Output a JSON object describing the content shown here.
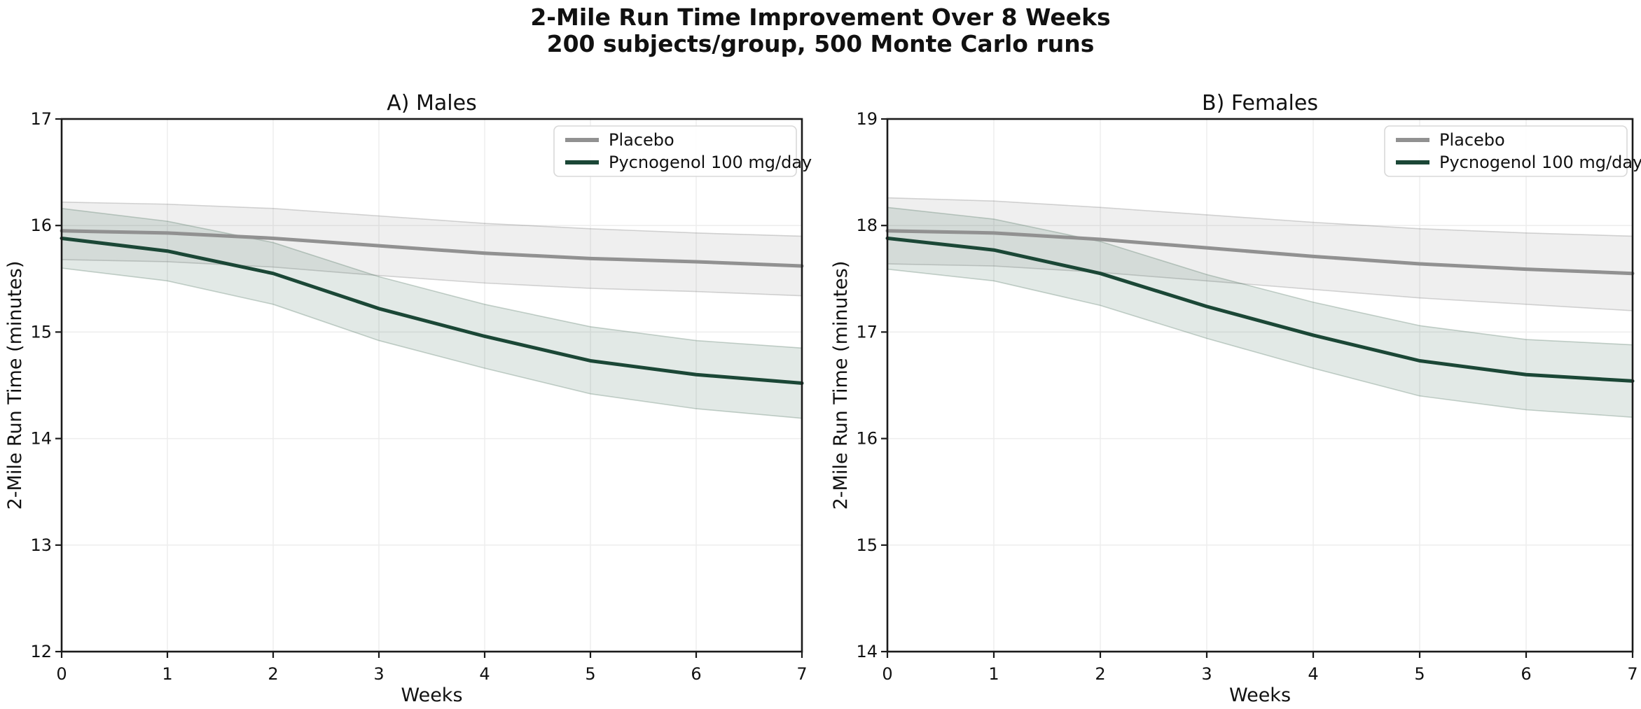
{
  "page": {
    "title": "2-Mile Run Time Improvement Over 8 Weeks",
    "subtitle": "200 subjects/group, 500 Monte Carlo runs"
  },
  "colors": {
    "placebo_line": "#919191",
    "treatment_line": "#1b4736",
    "placebo_band_fill": "rgba(150,150,150,0.15)",
    "treatment_band_fill": "rgba(34,85,60,0.13)",
    "placebo_band_edge": "rgba(120,120,120,0.30)",
    "treatment_band_edge": "rgba(60,100,80,0.28)",
    "grid": "#ededed",
    "spine": "#1a1a1a",
    "text": "#111111",
    "legend_border": "#d8d8d8",
    "legend_fill": "rgba(255,255,255,0.85)"
  },
  "chart_data": [
    {
      "type": "line",
      "panel_id": "males",
      "title": "A) Males",
      "xlabel": "Weeks",
      "ylabel": "2-Mile Run Time (minutes)",
      "x": [
        0,
        1,
        2,
        3,
        4,
        5,
        6,
        7
      ],
      "xlim": [
        0,
        7
      ],
      "ylim": [
        12,
        17
      ],
      "x_ticks": [
        "0",
        "1",
        "2",
        "3",
        "4",
        "5",
        "6",
        "7"
      ],
      "y_ticks": [
        "12",
        "13",
        "14",
        "15",
        "16",
        "17"
      ],
      "grid": true,
      "legend_position": "upper right",
      "series": [
        {
          "name": "Placebo",
          "color_key": "placebo",
          "values": [
            15.95,
            15.93,
            15.88,
            15.81,
            15.74,
            15.69,
            15.66,
            15.62
          ],
          "band_upper": [
            16.22,
            16.2,
            16.16,
            16.09,
            16.02,
            15.97,
            15.93,
            15.9
          ],
          "band_lower": [
            15.68,
            15.66,
            15.61,
            15.53,
            15.46,
            15.41,
            15.38,
            15.34
          ]
        },
        {
          "name": "Pycnogenol 100 mg/day",
          "color_key": "treatment",
          "values": [
            15.88,
            15.76,
            15.55,
            15.22,
            14.96,
            14.73,
            14.6,
            14.52
          ],
          "band_upper": [
            16.16,
            16.04,
            15.84,
            15.52,
            15.26,
            15.05,
            14.92,
            14.85
          ],
          "band_lower": [
            15.6,
            15.48,
            15.26,
            14.92,
            14.66,
            14.42,
            14.28,
            14.19
          ]
        }
      ]
    },
    {
      "type": "line",
      "panel_id": "females",
      "title": "B) Females",
      "xlabel": "Weeks",
      "ylabel": "2-Mile Run Time (minutes)",
      "x": [
        0,
        1,
        2,
        3,
        4,
        5,
        6,
        7
      ],
      "xlim": [
        0,
        7
      ],
      "ylim": [
        14,
        19
      ],
      "x_ticks": [
        "0",
        "1",
        "2",
        "3",
        "4",
        "5",
        "6",
        "7"
      ],
      "y_ticks": [
        "14",
        "15",
        "16",
        "17",
        "18",
        "19"
      ],
      "grid": true,
      "legend_position": "upper right",
      "series": [
        {
          "name": "Placebo",
          "color_key": "placebo",
          "values": [
            17.95,
            17.93,
            17.87,
            17.79,
            17.71,
            17.64,
            17.59,
            17.55
          ],
          "band_upper": [
            18.26,
            18.23,
            18.17,
            18.1,
            18.03,
            17.97,
            17.93,
            17.9
          ],
          "band_lower": [
            17.64,
            17.62,
            17.56,
            17.48,
            17.4,
            17.32,
            17.26,
            17.2
          ]
        },
        {
          "name": "Pycnogenol 100 mg/day",
          "color_key": "treatment",
          "values": [
            17.88,
            17.77,
            17.55,
            17.24,
            16.97,
            16.73,
            16.6,
            16.54
          ],
          "band_upper": [
            18.17,
            18.06,
            17.85,
            17.54,
            17.28,
            17.06,
            16.93,
            16.88
          ],
          "band_lower": [
            17.59,
            17.48,
            17.25,
            16.94,
            16.66,
            16.4,
            16.27,
            16.2
          ]
        }
      ]
    }
  ]
}
